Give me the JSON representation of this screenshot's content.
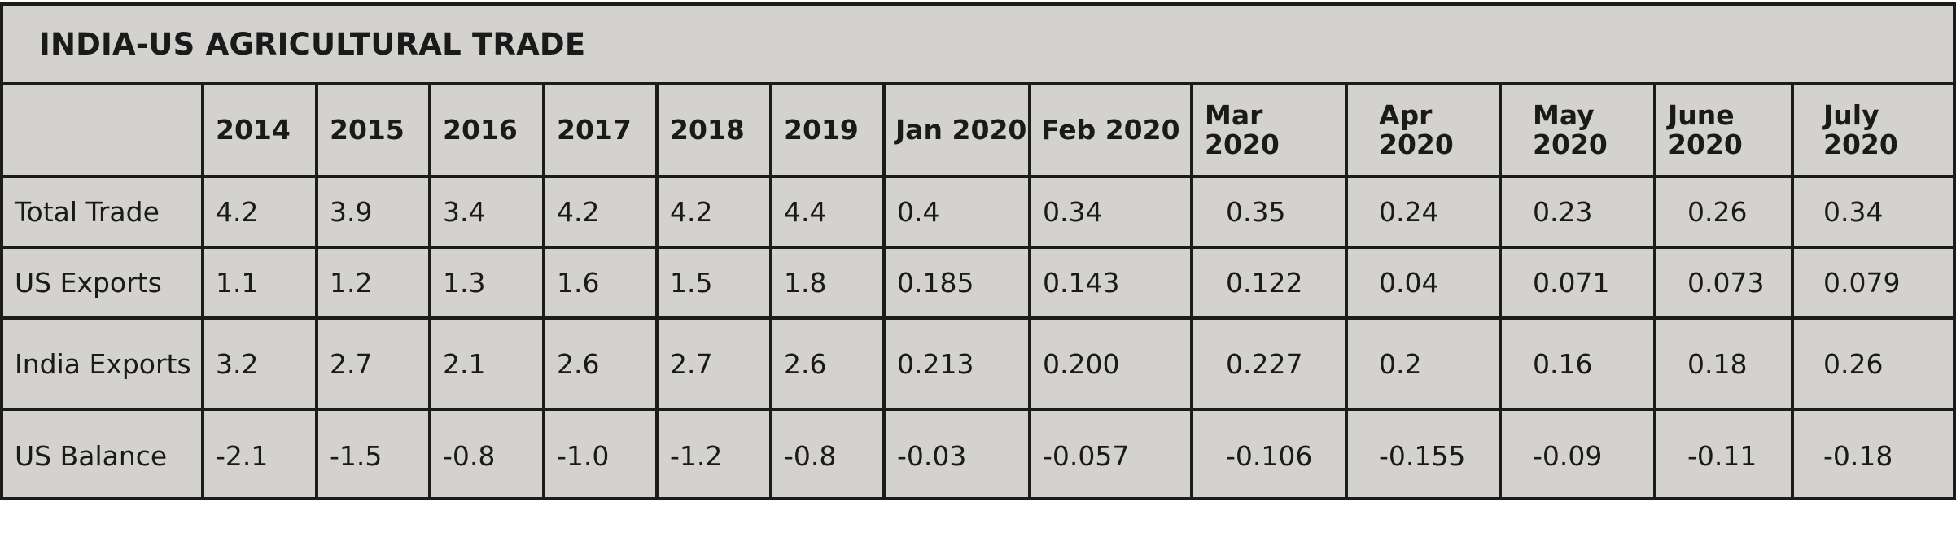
{
  "title": "INDIA-US AGRICULTURAL TRADE",
  "columns": [
    "",
    "2014",
    "2015",
    "2016",
    "2017",
    "2018",
    "2019",
    "Jan 2020",
    "Feb 2020",
    "Mar 2020",
    "Apr 2020",
    "May 2020",
    "June 2020",
    "July 2020"
  ],
  "rows": [
    {
      "label": "Total Trade",
      "values": [
        "4.2",
        "3.9",
        "3.4",
        "4.2",
        "4.2",
        "4.4",
        "0.4",
        "0.34",
        "0.35",
        "0.24",
        "0.23",
        "0.26",
        "0.34"
      ]
    },
    {
      "label": "US Exports",
      "values": [
        "1.1",
        "1.2",
        "1.3",
        "1.6",
        "1.5",
        "1.8",
        "0.185",
        "0.143",
        "0.122",
        "0.04",
        "0.071",
        "0.073",
        "0.079"
      ]
    },
    {
      "label": "India Exports",
      "values": [
        "3.2",
        "2.7",
        "2.1",
        "2.6",
        "2.7",
        "2.6",
        "0.213",
        "0.200",
        "0.227",
        "0.2",
        "0.16",
        "0.18",
        "0.26"
      ]
    },
    {
      "label": "US Balance",
      "values": [
        "-2.1",
        "-1.5",
        "-0.8",
        "-1.0",
        "-1.2",
        "-0.8",
        "-0.03",
        "-0.057",
        "-0.106",
        "-0.155",
        "-0.09",
        "-0.11",
        "-0.18"
      ]
    }
  ],
  "colors": {
    "background": "#d4d2ce",
    "border": "#1c1c1c",
    "text": "#1a1a1a"
  }
}
